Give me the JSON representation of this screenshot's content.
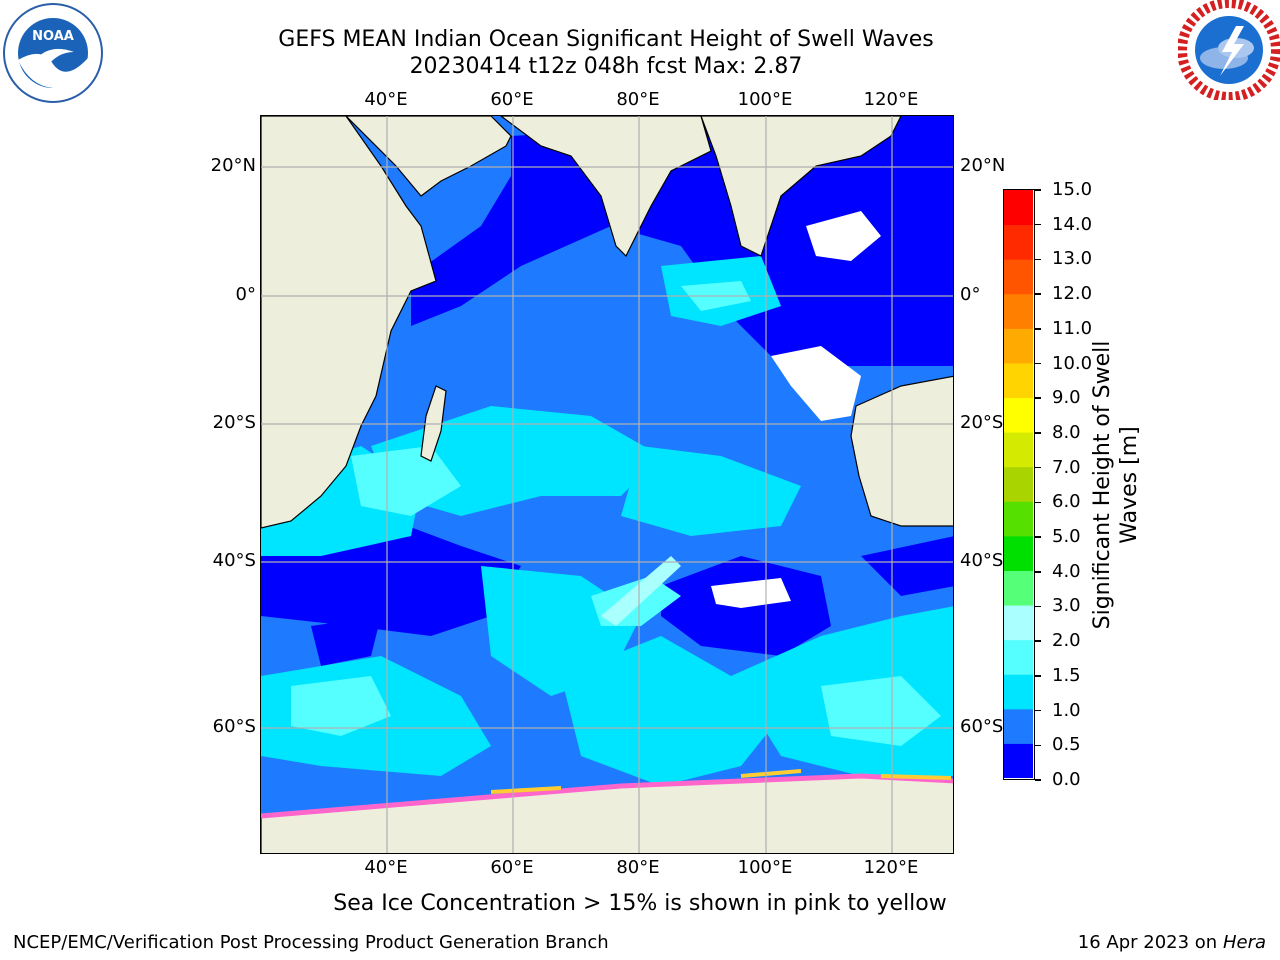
{
  "title": {
    "line1": "GEFS MEAN Indian Ocean Significant Height of Swell Waves",
    "line2": "20230414 t12z 048h fcst   Max: 2.87"
  },
  "map": {
    "lon_labels": [
      "40°E",
      "60°E",
      "80°E",
      "100°E",
      "120°E"
    ],
    "lon_values": [
      40,
      60,
      80,
      100,
      120
    ],
    "lat_labels": [
      "20°N",
      "0°",
      "20°S",
      "40°S",
      "60°S"
    ],
    "lat_values": [
      20,
      0,
      -20,
      -40,
      -60
    ],
    "extent": {
      "lon_min": 20,
      "lon_max": 130,
      "lat_min": -77,
      "lat_max": 28
    },
    "land_color": "#eeeedd",
    "grid_color": "#b0b0b0"
  },
  "colorbar": {
    "label": "Significant Height of Swell Waves [m]",
    "label_line1": "Significant Height of Swell",
    "label_line2": "Waves [m]",
    "ticks": [
      "0.0",
      "0.5",
      "1.0",
      "1.5",
      "2.0",
      "3.0",
      "4.0",
      "5.0",
      "6.0",
      "7.0",
      "8.0",
      "9.0",
      "10.0",
      "11.0",
      "12.0",
      "13.0",
      "14.0",
      "15.0"
    ],
    "colors": [
      "#0000ff",
      "#1e7bff",
      "#00e5ff",
      "#55ffff",
      "#aaffff",
      "#55ff77",
      "#00e000",
      "#55e000",
      "#aad400",
      "#d4ea00",
      "#ffff00",
      "#ffd400",
      "#ffaa00",
      "#ff8000",
      "#ff5500",
      "#ff2a00",
      "#ff0000"
    ]
  },
  "logos": {
    "left": {
      "icon": "noaa-logo",
      "text": "NOAA"
    },
    "right": {
      "icon": "nws-logo"
    }
  },
  "footnote": "Sea Ice Concentration > 15% is shown in pink to yellow",
  "credit_left": "NCEP/EMC/Verification Post Processing Product Generation Branch",
  "credit_right": {
    "date": "16 Apr 2023 on",
    "system": "Hera"
  }
}
